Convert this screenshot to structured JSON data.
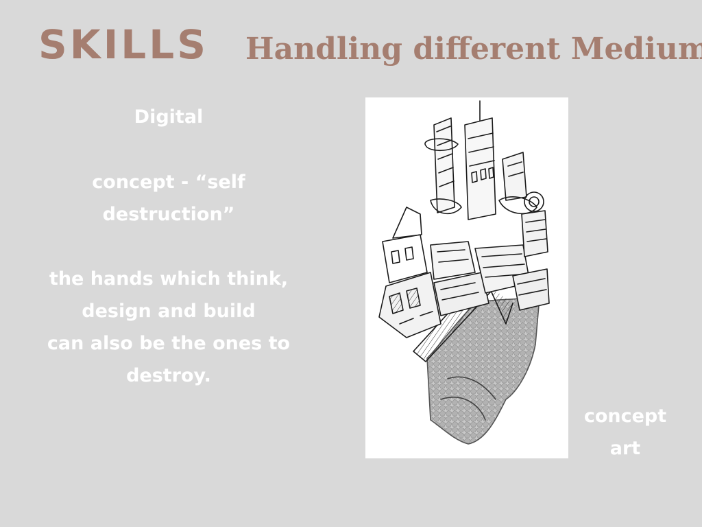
{
  "logo": {
    "text": "SKILLS",
    "color": "#a57e70"
  },
  "headline": {
    "text": "Handling different Mediums",
    "color": "#a57e70"
  },
  "description": {
    "medium": "Digital",
    "concept_lines": [
      "concept - “self",
      "destruction”"
    ],
    "statement_lines": [
      "the hands which think,",
      "design and build",
      "can also be the ones to",
      "destroy."
    ]
  },
  "artwork": {
    "icon": "hand-city-sketch",
    "background": "#ffffff"
  },
  "caption": {
    "lines": [
      "concept",
      "art"
    ]
  },
  "colors": {
    "background": "#d9d9d9",
    "text": "#ffffff",
    "accent": "#a57e70"
  }
}
